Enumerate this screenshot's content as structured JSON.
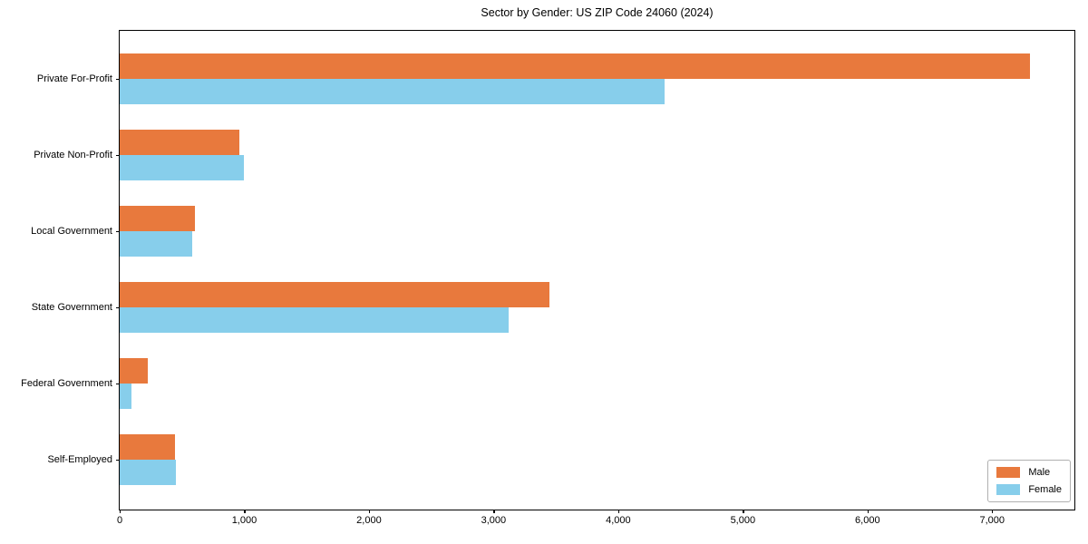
{
  "chart_data": {
    "type": "bar",
    "orientation": "horizontal",
    "title": "Sector by Gender: US ZIP Code 24060 (2024)",
    "xlabel": "",
    "ylabel": "",
    "categories": [
      "Private For-Profit",
      "Private Non-Profit",
      "Local Government",
      "State Government",
      "Federal Government",
      "Self-Employed"
    ],
    "series": [
      {
        "name": "Male",
        "color": "#e8793d",
        "values": [
          7300,
          960,
          605,
          3445,
          225,
          445
        ]
      },
      {
        "name": "Female",
        "color": "#87ceeb",
        "values": [
          4370,
          1000,
          585,
          3120,
          95,
          450
        ]
      }
    ],
    "xlim": [
      0,
      7660
    ],
    "xticks": [
      0,
      1000,
      2000,
      3000,
      4000,
      5000,
      6000,
      7000
    ],
    "xtick_labels": [
      "0",
      "1,000",
      "2,000",
      "3,000",
      "4,000",
      "5,000",
      "6,000",
      "7,000"
    ],
    "grid": false,
    "legend": {
      "position": "lower right",
      "entries": [
        "Male",
        "Female"
      ]
    },
    "colors": {
      "background": "#ffffff",
      "text": "#000000",
      "spine": "#000000",
      "legend_border": "#b0b0b0"
    }
  }
}
